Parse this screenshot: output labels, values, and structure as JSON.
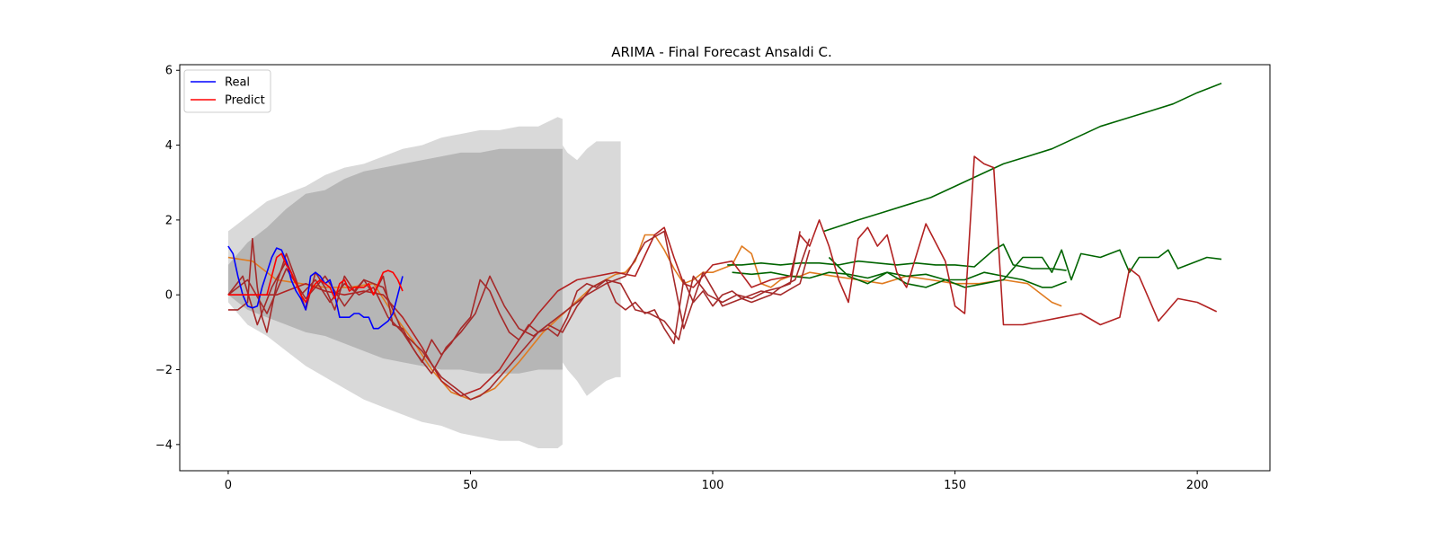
{
  "chart_data": {
    "type": "line",
    "title": "ARIMA - Final Forecast Ansaldi C.",
    "xlabel": "",
    "ylabel": "",
    "xlim": [
      -10,
      215
    ],
    "ylim": [
      -4.7,
      6.15
    ],
    "xticks": [
      0,
      50,
      100,
      150,
      200
    ],
    "yticks": [
      -4,
      -2,
      0,
      2,
      4,
      6
    ],
    "grid": false,
    "legend": {
      "position": "top-left",
      "entries": [
        {
          "label": "Real",
          "color": "#0000ff"
        },
        {
          "label": "Predict",
          "color": "#ff0000"
        }
      ]
    },
    "bands": [
      {
        "color": "#cccccc",
        "opacity": 0.75,
        "x": [
          0,
          2,
          4,
          8,
          12,
          16,
          20,
          24,
          28,
          32,
          36,
          40,
          44,
          48,
          52,
          56,
          60,
          64,
          68,
          69
        ],
        "upper": [
          1.7,
          1.9,
          2.1,
          2.5,
          2.7,
          2.9,
          3.2,
          3.4,
          3.5,
          3.7,
          3.9,
          4.0,
          4.2,
          4.3,
          4.4,
          4.4,
          4.5,
          4.5,
          4.75,
          4.7
        ],
        "lower": [
          -0.2,
          -0.5,
          -0.8,
          -1.1,
          -1.5,
          -1.9,
          -2.2,
          -2.5,
          -2.8,
          -3.0,
          -3.2,
          -3.4,
          -3.5,
          -3.7,
          -3.8,
          -3.9,
          -3.9,
          -4.1,
          -4.1,
          -4.0
        ]
      },
      {
        "color": "#cccccc",
        "opacity": 0.75,
        "x": [
          69,
          70,
          72,
          74,
          76,
          78,
          80,
          81
        ],
        "upper": [
          4.0,
          3.8,
          3.6,
          3.9,
          4.1,
          4.1,
          4.1,
          4.1
        ],
        "lower": [
          -1.8,
          -2.0,
          -2.3,
          -2.7,
          -2.5,
          -2.3,
          -2.2,
          -2.2
        ]
      },
      {
        "color": "#999999",
        "opacity": 0.55,
        "x": [
          0,
          4,
          8,
          12,
          16,
          20,
          24,
          28,
          32,
          36,
          40,
          44,
          48,
          52,
          56,
          60,
          64,
          68,
          69
        ],
        "upper": [
          0.8,
          1.4,
          1.8,
          2.3,
          2.7,
          2.8,
          3.1,
          3.3,
          3.4,
          3.5,
          3.6,
          3.7,
          3.8,
          3.8,
          3.9,
          3.9,
          3.9,
          3.9,
          3.9
        ],
        "lower": [
          0.0,
          -0.4,
          -0.6,
          -0.8,
          -1.0,
          -1.1,
          -1.3,
          -1.5,
          -1.7,
          -1.8,
          -1.9,
          -2.0,
          -2.0,
          -2.1,
          -2.1,
          -2.1,
          -2.0,
          -2.0,
          -2.0
        ]
      }
    ],
    "series": [
      {
        "name": "Real",
        "color": "#0000ff",
        "x": [
          0,
          1,
          2,
          3,
          4,
          5,
          6,
          7,
          8,
          9,
          10,
          11,
          12,
          13,
          14,
          15,
          16,
          17,
          18,
          19,
          20,
          21,
          22,
          23,
          24,
          25,
          26,
          27,
          28,
          29,
          30,
          31,
          32,
          33,
          34,
          35,
          36
        ],
        "y": [
          1.3,
          1.1,
          0.5,
          0.0,
          -0.3,
          -0.35,
          -0.3,
          0.2,
          0.6,
          1.0,
          1.25,
          1.2,
          0.9,
          0.4,
          0.1,
          -0.1,
          -0.4,
          0.5,
          0.6,
          0.5,
          0.3,
          0.4,
          0.0,
          -0.6,
          -0.6,
          -0.6,
          -0.5,
          -0.5,
          -0.6,
          -0.6,
          -0.9,
          -0.9,
          -0.8,
          -0.7,
          -0.5,
          0.0,
          0.5
        ]
      },
      {
        "name": "Predict",
        "color": "#ff0000",
        "x": [
          0,
          1,
          2,
          3,
          4,
          5,
          6,
          7,
          8,
          9,
          10,
          11,
          12,
          13,
          14,
          15,
          16,
          17,
          18,
          19,
          20,
          21,
          22,
          23,
          24,
          25,
          26,
          27,
          28,
          29,
          30,
          31,
          32,
          33,
          34,
          35,
          36
        ],
        "y": [
          0.0,
          0.0,
          0.0,
          0.0,
          0.0,
          0.0,
          0.0,
          0.0,
          0.0,
          0.5,
          1.0,
          1.1,
          0.8,
          0.6,
          0.3,
          0.0,
          -0.2,
          0.1,
          0.3,
          0.4,
          0.3,
          0.2,
          -0.1,
          0.3,
          0.4,
          0.1,
          0.2,
          0.2,
          0.2,
          0.3,
          0.0,
          0.3,
          0.6,
          0.65,
          0.6,
          0.4,
          0.1
        ]
      },
      {
        "color": "#e07b20",
        "x": [
          0,
          5,
          10,
          15,
          20,
          25,
          30,
          34,
          38,
          42,
          46,
          50,
          55,
          60,
          65,
          70,
          75,
          80,
          82,
          84,
          86,
          88,
          90,
          92,
          94,
          96,
          98,
          100,
          102,
          104,
          106,
          108,
          110,
          112,
          114,
          116,
          118,
          120,
          125,
          130,
          135,
          140,
          145,
          150,
          155,
          160,
          165,
          170,
          172
        ],
        "y": [
          1.0,
          0.9,
          0.4,
          0.3,
          0.2,
          0.2,
          0.3,
          -0.5,
          -1.2,
          -2.0,
          -2.6,
          -2.8,
          -2.5,
          -1.8,
          -1.0,
          -0.4,
          0.2,
          0.55,
          0.6,
          0.9,
          1.6,
          1.6,
          1.2,
          0.7,
          0.3,
          0.4,
          0.6,
          0.6,
          0.7,
          0.8,
          1.3,
          1.1,
          0.3,
          0.2,
          0.4,
          0.5,
          0.5,
          0.6,
          0.5,
          0.4,
          0.3,
          0.5,
          0.4,
          0.3,
          0.3,
          0.4,
          0.3,
          -0.2,
          -0.3
        ]
      },
      {
        "color": "#006400",
        "x": [
          123,
          130,
          135,
          140,
          145,
          150,
          155,
          160,
          165,
          170,
          175,
          180,
          185,
          190,
          195,
          200,
          205
        ],
        "y": [
          1.7,
          2.0,
          2.2,
          2.4,
          2.6,
          2.9,
          3.2,
          3.5,
          3.7,
          3.9,
          4.2,
          4.5,
          4.7,
          4.9,
          5.1,
          5.4,
          5.65
        ]
      },
      {
        "color": "#006400",
        "x": [
          103,
          106,
          110,
          114,
          118,
          122,
          126,
          130,
          134,
          138,
          142,
          146,
          150,
          154,
          158,
          160,
          162,
          166,
          170,
          173
        ],
        "y": [
          0.8,
          0.8,
          0.85,
          0.8,
          0.85,
          0.85,
          0.8,
          0.9,
          0.85,
          0.8,
          0.85,
          0.8,
          0.8,
          0.75,
          1.2,
          1.35,
          0.8,
          0.7,
          0.7,
          0.65
        ]
      },
      {
        "color": "#006400",
        "x": [
          124,
          128,
          132,
          136,
          140,
          144,
          148,
          152,
          156,
          160,
          164,
          168,
          170,
          172,
          174,
          176,
          180,
          184,
          186,
          188,
          192,
          194,
          196,
          200,
          202,
          205
        ],
        "y": [
          1.0,
          0.5,
          0.3,
          0.6,
          0.3,
          0.2,
          0.4,
          0.2,
          0.3,
          0.4,
          1.0,
          1.0,
          0.6,
          1.2,
          0.4,
          1.1,
          1.0,
          1.2,
          0.6,
          1.0,
          1.0,
          1.2,
          0.7,
          0.9,
          1.0,
          0.95
        ]
      },
      {
        "color": "#006400",
        "x": [
          104,
          108,
          112,
          116,
          120,
          124,
          128,
          132,
          136,
          140,
          144,
          148,
          152,
          156,
          160,
          164,
          168,
          170,
          173
        ],
        "y": [
          0.6,
          0.55,
          0.6,
          0.5,
          0.45,
          0.6,
          0.55,
          0.45,
          0.6,
          0.5,
          0.55,
          0.4,
          0.4,
          0.6,
          0.5,
          0.4,
          0.2,
          0.2,
          0.35
        ]
      },
      {
        "color": "#b22222",
        "x": [
          0,
          2,
          4,
          6,
          8,
          10,
          12,
          14,
          16,
          18,
          20,
          24,
          28,
          32,
          36,
          40,
          44,
          48,
          52,
          56,
          60,
          64,
          68,
          72,
          76,
          80,
          84,
          88,
          90,
          92,
          94,
          96,
          98,
          100,
          104,
          108,
          112,
          116,
          118,
          120,
          122,
          124,
          126,
          128,
          130,
          132,
          134,
          136,
          138,
          140,
          144,
          148,
          150,
          152,
          154,
          156,
          158,
          160,
          164,
          168,
          172,
          176,
          180,
          184,
          186,
          188,
          192,
          196,
          200,
          204
        ],
        "y": [
          0.0,
          0.0,
          0.0,
          0.0,
          0.0,
          0.0,
          0.1,
          0.2,
          0.3,
          0.2,
          0.1,
          0.0,
          0.1,
          0.0,
          -0.6,
          -1.4,
          -2.3,
          -2.7,
          -2.5,
          -2.0,
          -1.2,
          -0.5,
          0.1,
          0.4,
          0.5,
          0.6,
          0.5,
          1.6,
          1.8,
          1.0,
          0.3,
          0.2,
          0.5,
          0.8,
          0.9,
          0.2,
          0.4,
          0.5,
          1.6,
          1.3,
          2.0,
          1.3,
          0.4,
          -0.2,
          1.5,
          1.8,
          1.3,
          1.6,
          0.6,
          0.2,
          1.9,
          0.9,
          -0.3,
          -0.5,
          3.7,
          3.5,
          3.4,
          -0.8,
          -0.8,
          -0.7,
          -0.6,
          -0.5,
          -0.8,
          -0.6,
          0.7,
          0.5,
          -0.7,
          -0.1,
          -0.2,
          -0.45
        ]
      },
      {
        "color": "#a52a2a",
        "x": [
          0,
          2,
          4,
          5,
          6,
          7,
          8,
          10,
          12,
          14,
          16,
          18,
          20,
          22,
          24,
          26,
          28,
          30,
          32,
          34,
          36,
          38,
          40,
          42,
          44,
          46,
          48,
          50,
          52,
          54,
          56,
          58,
          60,
          62,
          64,
          66,
          68,
          70,
          72,
          74,
          76,
          78,
          80,
          82,
          84,
          86,
          88,
          90,
          92,
          94,
          96,
          98,
          100,
          102,
          104,
          106,
          108,
          110,
          112,
          114,
          116,
          118
        ],
        "y": [
          -0.4,
          -0.4,
          -0.2,
          1.5,
          0.2,
          -0.6,
          -1.0,
          0.3,
          1.1,
          0.4,
          -0.4,
          0.6,
          0.2,
          -0.4,
          0.5,
          0.1,
          0.4,
          0.0,
          0.5,
          -0.8,
          -0.9,
          -1.4,
          -1.8,
          -1.2,
          -1.6,
          -1.3,
          -0.9,
          -0.6,
          0.4,
          0.1,
          -0.5,
          -1.0,
          -1.2,
          -0.8,
          -1.0,
          -0.9,
          -1.1,
          -0.6,
          0.1,
          0.3,
          0.2,
          0.4,
          -0.2,
          -0.4,
          -0.2,
          -0.5,
          -0.4,
          -0.9,
          -1.3,
          0.4,
          -0.2,
          0.1,
          -0.3,
          0.0,
          0.1,
          -0.1,
          -0.2,
          -0.1,
          0.0,
          0.2,
          0.3,
          1.7
        ]
      },
      {
        "color": "#a52a2a",
        "x": [
          0,
          3,
          6,
          9,
          12,
          15,
          18,
          21,
          24,
          27,
          30,
          33,
          36,
          39,
          42,
          45,
          48,
          51,
          54,
          57,
          60,
          63,
          66,
          69,
          72,
          75,
          78,
          81,
          84,
          87,
          90,
          93,
          96,
          99,
          102,
          105,
          108,
          111,
          114,
          117,
          120
        ],
        "y": [
          0.0,
          0.5,
          -0.8,
          0.2,
          0.9,
          0.0,
          0.4,
          -0.2,
          0.3,
          0.0,
          0.2,
          -0.6,
          -1.0,
          -1.6,
          -2.1,
          -1.4,
          -1.0,
          -0.5,
          0.5,
          -0.3,
          -0.9,
          -1.1,
          -0.8,
          -1.0,
          -0.3,
          0.2,
          0.4,
          0.3,
          -0.4,
          -0.5,
          -0.7,
          -1.2,
          0.5,
          0.0,
          -0.2,
          0.0,
          -0.1,
          0.1,
          0.2,
          0.4,
          1.5
        ]
      },
      {
        "color": "#a52a2a",
        "x": [
          0,
          4,
          8,
          12,
          16,
          20,
          24,
          28,
          32,
          36,
          40,
          44,
          46,
          48,
          50,
          52,
          54,
          56,
          58,
          60,
          62,
          64,
          66,
          68,
          70,
          74,
          78,
          82,
          86,
          90,
          94,
          98,
          102,
          106,
          110,
          114,
          118,
          120
        ],
        "y": [
          0.0,
          0.4,
          -0.5,
          0.7,
          -0.1,
          0.5,
          -0.3,
          0.4,
          0.2,
          -1.0,
          -1.5,
          -2.2,
          -2.4,
          -2.6,
          -2.8,
          -2.7,
          -2.5,
          -2.2,
          -1.9,
          -1.6,
          -1.3,
          -1.0,
          -0.8,
          -0.6,
          -0.4,
          0.0,
          0.3,
          0.5,
          1.4,
          1.7,
          -0.9,
          0.6,
          -0.3,
          -0.1,
          0.1,
          0.0,
          0.3,
          1.2
        ]
      }
    ]
  }
}
